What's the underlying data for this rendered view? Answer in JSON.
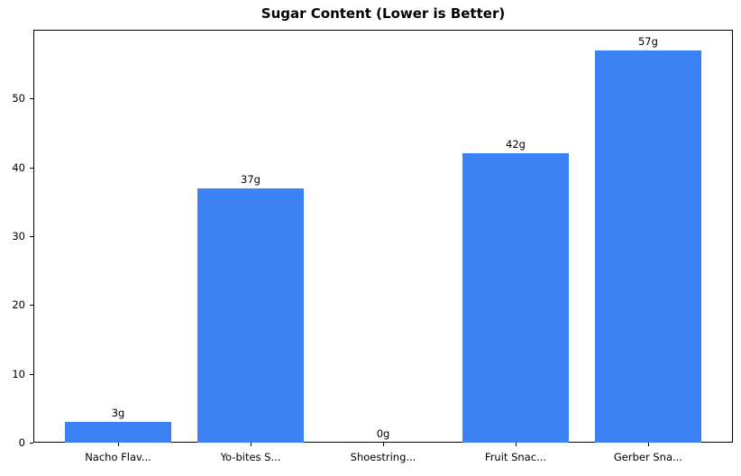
{
  "chart_data": {
    "type": "bar",
    "title": "Sugar Content (Lower is Better)",
    "categories": [
      "Nacho Flav...",
      "Yo-bites S...",
      "Shoestring...",
      "Fruit Snac...",
      "Gerber Sna..."
    ],
    "values": [
      3,
      37,
      0,
      42,
      57
    ],
    "bar_labels": [
      "3g",
      "37g",
      "0g",
      "42g",
      "57g"
    ],
    "xlabel": "",
    "ylabel": "",
    "yticks": [
      0,
      10,
      20,
      30,
      40,
      50
    ],
    "ylim": [
      0,
      60
    ],
    "bar_color": "#3d82f4",
    "text_color": "#000000",
    "grid": false,
    "legend": false
  }
}
